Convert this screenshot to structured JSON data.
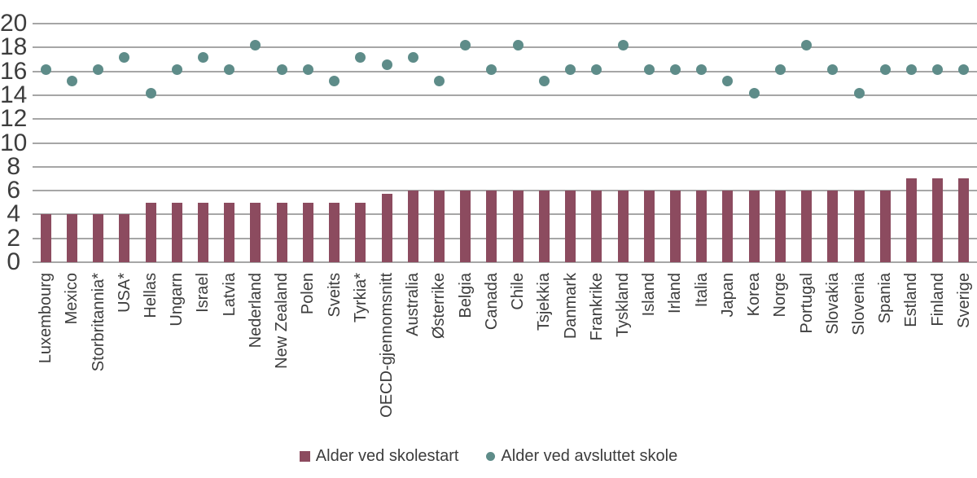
{
  "chart_data": {
    "type": "bar",
    "title": "",
    "xlabel": "",
    "ylabel": "",
    "categories": [
      "Luxembourg",
      "Mexico",
      "Storbritannia*",
      "USA*",
      "Hellas",
      "Ungarn",
      "Israel",
      "Latvia",
      "Nederland",
      "New Zealand",
      "Polen",
      "Sveits",
      "Tyrkia*",
      "OECD-gjennomsnitt",
      "Australia",
      "Østerrike",
      "Belgia",
      "Canada",
      "Chile",
      "Tsjekkia",
      "Danmark",
      "Frankrike",
      "Tyskland",
      "Island",
      "Irland",
      "Italia",
      "Japan",
      "Korea",
      "Norge",
      "Portugal",
      "Slovakia",
      "Slovenia",
      "Spania",
      "Estland",
      "Finland",
      "Sverige"
    ],
    "series": [
      {
        "name": "Alder ved skolestart",
        "type": "bar",
        "color": "#8C4B5F",
        "values": [
          4,
          4,
          4,
          4,
          5,
          5,
          5,
          5,
          5,
          5,
          5,
          5,
          5,
          5.7,
          6,
          6,
          6,
          6,
          6,
          6,
          6,
          6,
          6,
          6,
          6,
          6,
          6,
          6,
          6,
          6,
          6,
          6,
          6,
          7,
          7,
          7
        ]
      },
      {
        "name": "Alder ved avsluttet skole",
        "type": "scatter",
        "color": "#5E8C89",
        "values": [
          16,
          15,
          16,
          17,
          14,
          16,
          17,
          16,
          18,
          16,
          16,
          15,
          17,
          16.4,
          17,
          15,
          18,
          16,
          18,
          15,
          16,
          16,
          18,
          16,
          16,
          16,
          15,
          14,
          16,
          18,
          16,
          14,
          16,
          16,
          16,
          16
        ]
      }
    ],
    "ylim": [
      0,
      20
    ],
    "y_ticks": [
      0,
      2,
      4,
      6,
      8,
      10,
      12,
      14,
      16,
      18,
      20
    ],
    "grid": true,
    "gridline_color": "#A6A6A6",
    "legend_position": "bottom"
  }
}
